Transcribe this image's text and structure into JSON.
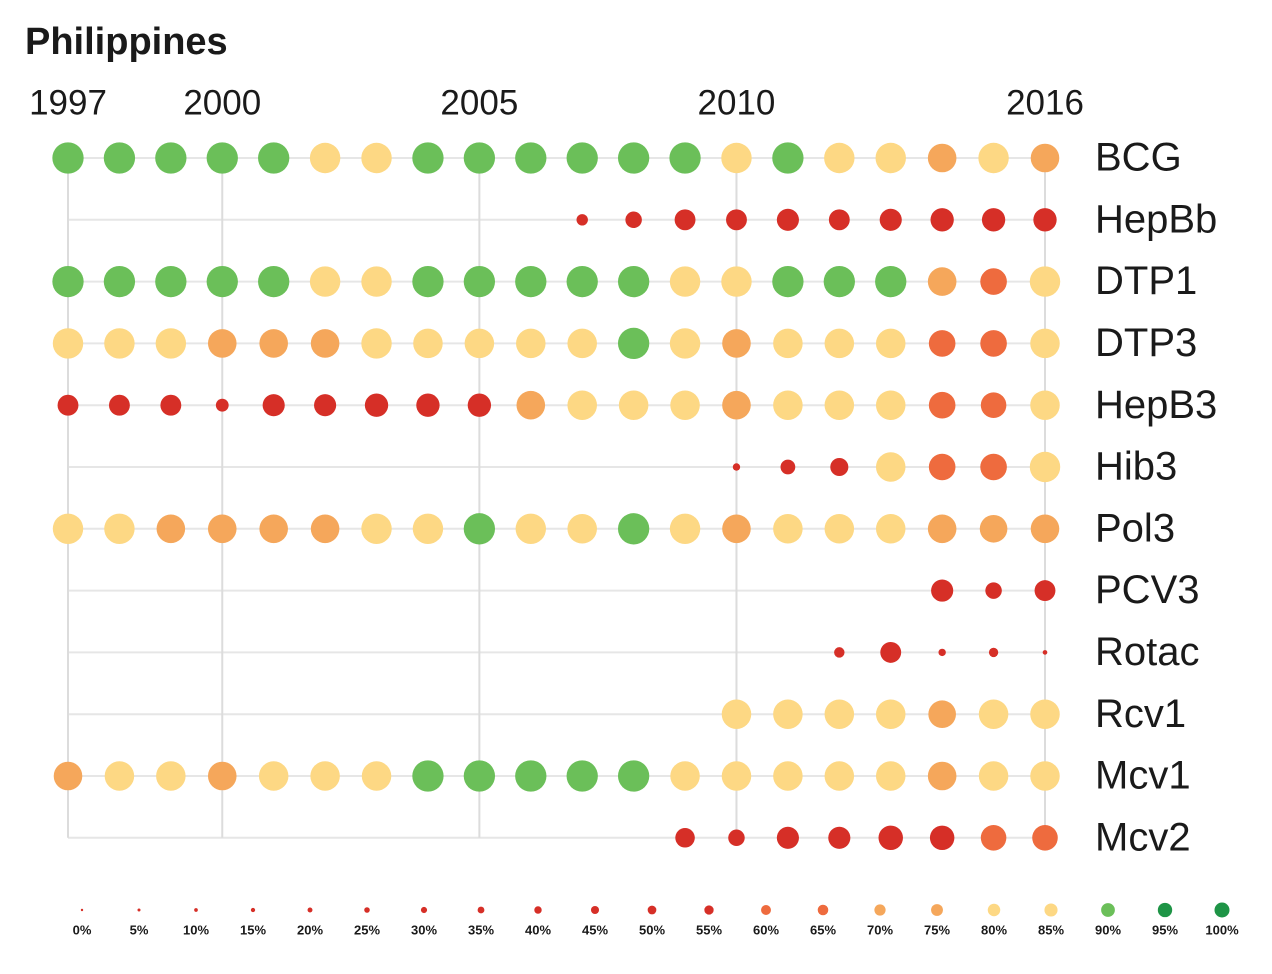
{
  "chart_data": {
    "type": "dot",
    "title": "Philippines",
    "x": [
      1997,
      1998,
      1999,
      2000,
      2001,
      2002,
      2003,
      2004,
      2005,
      2006,
      2007,
      2008,
      2009,
      2010,
      2011,
      2012,
      2013,
      2014,
      2015,
      2016
    ],
    "xlim": [
      1997,
      2016
    ],
    "xticks": [
      1997,
      2000,
      2005,
      2010,
      2016
    ],
    "grid": true,
    "series": [
      {
        "name": "BCG",
        "values": [
          90,
          90,
          90,
          90,
          90,
          85,
          85,
          90,
          90,
          90,
          90,
          90,
          90,
          85,
          90,
          85,
          85,
          75,
          85,
          75
        ]
      },
      {
        "name": "HepBb",
        "values": [
          null,
          null,
          null,
          null,
          null,
          null,
          null,
          null,
          null,
          null,
          12,
          25,
          40,
          40,
          45,
          40,
          45,
          50,
          50,
          50
        ]
      },
      {
        "name": "DTP1",
        "values": [
          90,
          90,
          90,
          90,
          90,
          85,
          85,
          90,
          90,
          90,
          90,
          90,
          85,
          85,
          90,
          90,
          90,
          75,
          65,
          85
        ]
      },
      {
        "name": "DTP3",
        "values": [
          85,
          85,
          85,
          75,
          75,
          75,
          85,
          80,
          80,
          80,
          80,
          90,
          85,
          75,
          80,
          80,
          80,
          65,
          65,
          80
        ]
      },
      {
        "name": "HepB3",
        "values": [
          40,
          40,
          40,
          15,
          45,
          45,
          50,
          50,
          50,
          75,
          80,
          80,
          80,
          75,
          80,
          80,
          80,
          65,
          60,
          80
        ]
      },
      {
        "name": "Hib3",
        "values": [
          null,
          null,
          null,
          null,
          null,
          null,
          null,
          null,
          null,
          null,
          null,
          null,
          null,
          5,
          20,
          30,
          80,
          65,
          65,
          85
        ]
      },
      {
        "name": "Pol3",
        "values": [
          85,
          85,
          75,
          75,
          75,
          75,
          85,
          85,
          90,
          85,
          80,
          90,
          85,
          75,
          80,
          80,
          80,
          75,
          70,
          75
        ]
      },
      {
        "name": "PCV3",
        "values": [
          null,
          null,
          null,
          null,
          null,
          null,
          null,
          null,
          null,
          null,
          null,
          null,
          null,
          null,
          null,
          null,
          null,
          45,
          25,
          40
        ]
      },
      {
        "name": "Rotac",
        "values": [
          null,
          null,
          null,
          null,
          null,
          null,
          null,
          null,
          null,
          null,
          null,
          null,
          null,
          null,
          null,
          10,
          40,
          5,
          8,
          2
        ]
      },
      {
        "name": "Rcv1",
        "values": [
          null,
          null,
          null,
          null,
          null,
          null,
          null,
          null,
          null,
          null,
          null,
          null,
          null,
          80,
          80,
          80,
          80,
          70,
          80,
          80
        ]
      },
      {
        "name": "Mcv1",
        "values": [
          75,
          80,
          80,
          75,
          80,
          80,
          80,
          90,
          90,
          90,
          90,
          90,
          80,
          80,
          80,
          80,
          80,
          75,
          80,
          80
        ]
      },
      {
        "name": "Mcv2",
        "values": [
          null,
          null,
          null,
          null,
          null,
          null,
          null,
          null,
          null,
          null,
          null,
          null,
          35,
          25,
          45,
          45,
          55,
          55,
          60,
          60
        ]
      }
    ],
    "legend": [
      {
        "value": 0,
        "label": "0%",
        "color": "#d62f27"
      },
      {
        "value": 5,
        "label": "5%",
        "color": "#d62f27"
      },
      {
        "value": 10,
        "label": "10%",
        "color": "#d62f27"
      },
      {
        "value": 15,
        "label": "15%",
        "color": "#d62f27"
      },
      {
        "value": 20,
        "label": "20%",
        "color": "#d62f27"
      },
      {
        "value": 25,
        "label": "25%",
        "color": "#d62f27"
      },
      {
        "value": 30,
        "label": "30%",
        "color": "#d62f27"
      },
      {
        "value": 35,
        "label": "35%",
        "color": "#d62f27"
      },
      {
        "value": 40,
        "label": "40%",
        "color": "#d62f27"
      },
      {
        "value": 45,
        "label": "45%",
        "color": "#d62f27"
      },
      {
        "value": 50,
        "label": "50%",
        "color": "#d62f27"
      },
      {
        "value": 55,
        "label": "55%",
        "color": "#d62f27"
      },
      {
        "value": 60,
        "label": "60%",
        "color": "#ee6b3e"
      },
      {
        "value": 65,
        "label": "65%",
        "color": "#ee6b3e"
      },
      {
        "value": 70,
        "label": "70%",
        "color": "#f5a75b"
      },
      {
        "value": 75,
        "label": "75%",
        "color": "#f5a75b"
      },
      {
        "value": 80,
        "label": "80%",
        "color": "#fdd884"
      },
      {
        "value": 85,
        "label": "85%",
        "color": "#fdd884"
      },
      {
        "value": 90,
        "label": "90%",
        "color": "#6bbf59"
      },
      {
        "value": 95,
        "label": "95%",
        "color": "#1e9446"
      },
      {
        "value": 100,
        "label": "100%",
        "color": "#1e9446"
      }
    ]
  }
}
